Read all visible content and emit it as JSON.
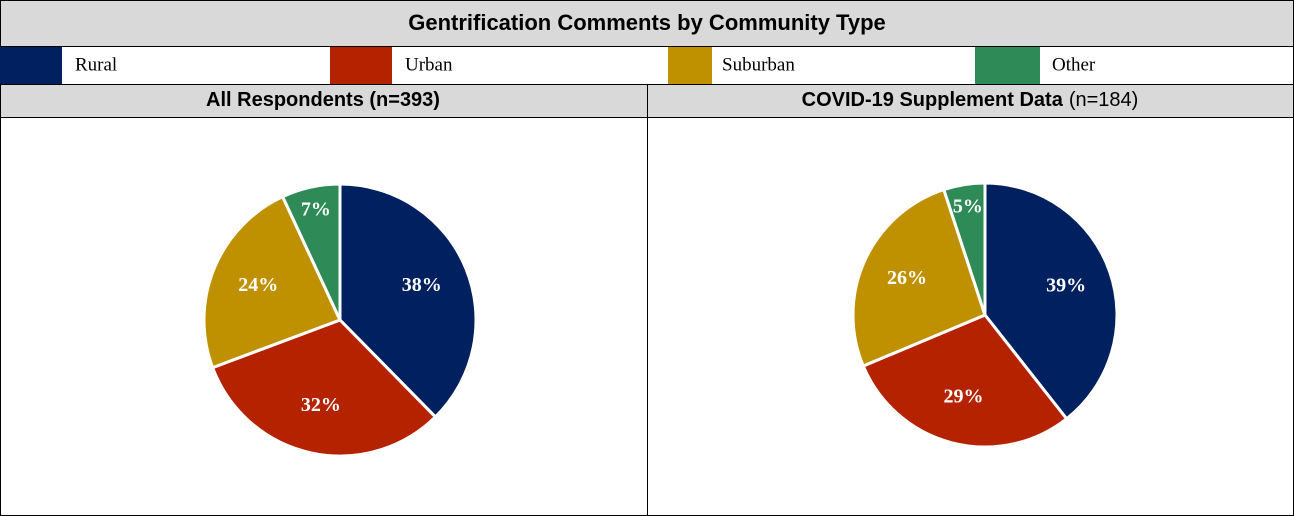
{
  "header": {
    "title": "Gentrification Comments by Community Type"
  },
  "legend": [
    {
      "name": "Rural",
      "color": "#002060"
    },
    {
      "name": "Urban",
      "color": "#b52200"
    },
    {
      "name": "Suburban",
      "color": "#bf9000"
    },
    {
      "name": "Other",
      "color": "#2e8b57"
    }
  ],
  "chart_data": [
    {
      "type": "pie",
      "title": "All Respondents (n=393)",
      "values": [
        38,
        32,
        24,
        7
      ],
      "value_labels": [
        "38%",
        "32%",
        "24%",
        "7%"
      ]
    },
    {
      "type": "pie",
      "title": "COVID-19 Supplement Data",
      "subtitle": "(n=184)",
      "values": [
        39,
        29,
        26,
        5
      ],
      "value_labels": [
        "39%",
        "29%",
        "26%",
        "5%"
      ]
    }
  ]
}
